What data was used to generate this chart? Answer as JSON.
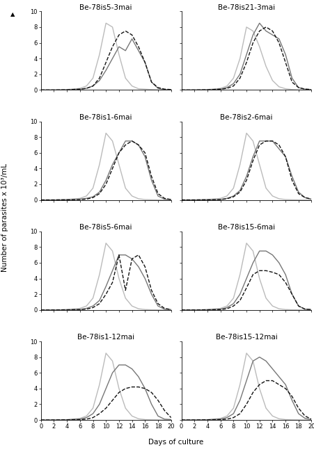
{
  "subplots": [
    {
      "title": "Be-78is5-3mai",
      "lines": [
        {
          "color": "#bbbbbb",
          "style": "solid",
          "lw": 1.0,
          "x": [
            0,
            2,
            4,
            6,
            7,
            8,
            9,
            10,
            11,
            12,
            13,
            14,
            15,
            16,
            17,
            18,
            19,
            20
          ],
          "y": [
            0,
            0,
            0.05,
            0.2,
            0.5,
            1.5,
            4.5,
            8.5,
            8.0,
            4.5,
            1.5,
            0.5,
            0.15,
            0.1,
            0.05,
            0.02,
            0.01,
            0.0
          ]
        },
        {
          "color": "#777777",
          "style": "solid",
          "lw": 1.0,
          "x": [
            0,
            2,
            4,
            6,
            7,
            8,
            9,
            10,
            11,
            12,
            13,
            14,
            15,
            16,
            17,
            18,
            19,
            20
          ],
          "y": [
            0,
            0,
            0.02,
            0.1,
            0.2,
            0.5,
            1.2,
            2.5,
            4.0,
            5.5,
            5.0,
            6.5,
            5.0,
            3.5,
            1.0,
            0.2,
            0.05,
            0.02
          ]
        },
        {
          "color": "#111111",
          "style": "dashed",
          "lw": 1.0,
          "x": [
            0,
            2,
            4,
            6,
            7,
            8,
            9,
            10,
            11,
            12,
            13,
            14,
            15,
            16,
            17,
            18,
            19,
            20
          ],
          "y": [
            0,
            0,
            0.02,
            0.1,
            0.2,
            0.5,
            1.5,
            3.5,
            5.5,
            7.0,
            7.5,
            7.0,
            5.5,
            3.5,
            1.0,
            0.3,
            0.1,
            0.05
          ]
        }
      ]
    },
    {
      "title": "Be-78is21-3mai",
      "lines": [
        {
          "color": "#bbbbbb",
          "style": "solid",
          "lw": 1.0,
          "x": [
            0,
            2,
            4,
            6,
            7,
            8,
            9,
            10,
            11,
            12,
            13,
            14,
            15,
            16,
            17,
            18,
            19,
            20
          ],
          "y": [
            0,
            0,
            0.05,
            0.2,
            0.5,
            1.5,
            4.0,
            8.0,
            7.5,
            5.5,
            3.0,
            1.2,
            0.4,
            0.15,
            0.05,
            0.02,
            0.01,
            0.0
          ]
        },
        {
          "color": "#777777",
          "style": "solid",
          "lw": 1.0,
          "x": [
            0,
            2,
            4,
            6,
            7,
            8,
            9,
            10,
            11,
            12,
            13,
            14,
            15,
            16,
            17,
            18,
            19,
            20
          ],
          "y": [
            0,
            0,
            0.02,
            0.1,
            0.3,
            0.8,
            2.0,
            4.5,
            7.0,
            8.5,
            7.5,
            7.0,
            6.5,
            4.5,
            1.5,
            0.3,
            0.1,
            0.05
          ]
        },
        {
          "color": "#111111",
          "style": "dashed",
          "lw": 1.0,
          "x": [
            0,
            2,
            4,
            6,
            7,
            8,
            9,
            10,
            11,
            12,
            13,
            14,
            15,
            16,
            17,
            18,
            19,
            20
          ],
          "y": [
            0,
            0,
            0.02,
            0.1,
            0.2,
            0.5,
            1.5,
            3.5,
            6.0,
            7.5,
            8.0,
            7.5,
            6.0,
            3.5,
            1.0,
            0.3,
            0.1,
            0.05
          ]
        }
      ]
    },
    {
      "title": "Be-78is1-6mai",
      "lines": [
        {
          "color": "#bbbbbb",
          "style": "solid",
          "lw": 1.0,
          "x": [
            0,
            2,
            4,
            6,
            7,
            8,
            9,
            10,
            11,
            12,
            13,
            14,
            15,
            16,
            17,
            18,
            19,
            20
          ],
          "y": [
            0,
            0,
            0.05,
            0.2,
            0.5,
            1.5,
            4.5,
            8.5,
            7.5,
            4.5,
            1.5,
            0.5,
            0.15,
            0.05,
            0.02,
            0.01,
            0.0,
            0.0
          ]
        },
        {
          "color": "#777777",
          "style": "solid",
          "lw": 1.0,
          "x": [
            0,
            2,
            4,
            6,
            7,
            8,
            9,
            10,
            11,
            12,
            13,
            14,
            15,
            16,
            17,
            18,
            19,
            20
          ],
          "y": [
            0,
            0,
            0.02,
            0.1,
            0.2,
            0.4,
            1.0,
            2.5,
            4.5,
            6.0,
            7.5,
            7.5,
            7.0,
            5.5,
            2.5,
            0.5,
            0.1,
            0.05
          ]
        },
        {
          "color": "#111111",
          "style": "dashed",
          "lw": 1.0,
          "x": [
            0,
            2,
            4,
            6,
            7,
            8,
            9,
            10,
            11,
            12,
            13,
            14,
            15,
            16,
            17,
            18,
            19,
            20
          ],
          "y": [
            0,
            0,
            0.02,
            0.05,
            0.1,
            0.3,
            0.8,
            2.0,
            4.0,
            6.0,
            7.0,
            7.5,
            7.0,
            6.0,
            3.0,
            0.8,
            0.2,
            0.05
          ]
        }
      ]
    },
    {
      "title": "Be-78is2-6mai",
      "lines": [
        {
          "color": "#bbbbbb",
          "style": "solid",
          "lw": 1.0,
          "x": [
            0,
            2,
            4,
            6,
            7,
            8,
            9,
            10,
            11,
            12,
            13,
            14,
            15,
            16,
            17,
            18,
            19,
            20
          ],
          "y": [
            0,
            0,
            0.05,
            0.2,
            0.5,
            1.5,
            4.5,
            8.5,
            7.5,
            4.5,
            1.5,
            0.5,
            0.15,
            0.05,
            0.02,
            0.01,
            0.0,
            0.0
          ]
        },
        {
          "color": "#777777",
          "style": "solid",
          "lw": 1.0,
          "x": [
            0,
            2,
            4,
            6,
            7,
            8,
            9,
            10,
            11,
            12,
            13,
            14,
            15,
            16,
            17,
            18,
            19,
            20
          ],
          "y": [
            0,
            0,
            0.02,
            0.05,
            0.2,
            0.5,
            1.2,
            3.0,
            5.5,
            7.5,
            7.5,
            7.5,
            6.5,
            5.5,
            3.0,
            1.0,
            0.3,
            0.1
          ]
        },
        {
          "color": "#111111",
          "style": "dashed",
          "lw": 1.0,
          "x": [
            0,
            2,
            4,
            6,
            7,
            8,
            9,
            10,
            11,
            12,
            13,
            14,
            15,
            16,
            17,
            18,
            19,
            20
          ],
          "y": [
            0,
            0,
            0.02,
            0.05,
            0.15,
            0.4,
            1.0,
            2.5,
            5.0,
            7.0,
            7.5,
            7.5,
            7.0,
            5.5,
            2.5,
            0.8,
            0.3,
            0.1
          ]
        }
      ]
    },
    {
      "title": "Be-78is5-6mai",
      "lines": [
        {
          "color": "#bbbbbb",
          "style": "solid",
          "lw": 1.0,
          "x": [
            0,
            2,
            4,
            6,
            7,
            8,
            9,
            10,
            11,
            12,
            13,
            14,
            15,
            16,
            17,
            18,
            19,
            20
          ],
          "y": [
            0,
            0,
            0.05,
            0.2,
            0.5,
            1.5,
            4.5,
            8.5,
            7.5,
            4.0,
            1.5,
            0.5,
            0.15,
            0.05,
            0.02,
            0.01,
            0.0,
            0.0
          ]
        },
        {
          "color": "#777777",
          "style": "solid",
          "lw": 1.0,
          "x": [
            0,
            2,
            4,
            6,
            7,
            8,
            9,
            10,
            11,
            12,
            13,
            14,
            15,
            16,
            17,
            18,
            19,
            20
          ],
          "y": [
            0,
            0,
            0.02,
            0.05,
            0.2,
            0.5,
            1.2,
            3.0,
            5.0,
            7.0,
            7.0,
            6.5,
            5.5,
            4.0,
            2.0,
            0.5,
            0.1,
            0.05
          ]
        },
        {
          "color": "#111111",
          "style": "dashed",
          "lw": 1.0,
          "x": [
            0,
            2,
            4,
            6,
            7,
            8,
            9,
            10,
            11,
            12,
            13,
            14,
            15,
            16,
            17,
            18,
            19,
            20
          ],
          "y": [
            0,
            0,
            0.02,
            0.05,
            0.1,
            0.3,
            0.8,
            2.0,
            3.5,
            7.0,
            2.5,
            6.5,
            7.0,
            5.5,
            2.5,
            0.8,
            0.2,
            0.05
          ]
        }
      ]
    },
    {
      "title": "Be-78is15-6mai",
      "lines": [
        {
          "color": "#bbbbbb",
          "style": "solid",
          "lw": 1.0,
          "x": [
            0,
            2,
            4,
            6,
            7,
            8,
            9,
            10,
            11,
            12,
            13,
            14,
            15,
            16,
            17,
            18,
            19,
            20
          ],
          "y": [
            0,
            0,
            0.05,
            0.2,
            0.5,
            1.5,
            4.5,
            8.5,
            7.5,
            4.0,
            1.5,
            0.5,
            0.15,
            0.05,
            0.02,
            0.01,
            0.0,
            0.0
          ]
        },
        {
          "color": "#777777",
          "style": "solid",
          "lw": 1.0,
          "x": [
            0,
            2,
            4,
            6,
            7,
            8,
            9,
            10,
            11,
            12,
            13,
            14,
            15,
            16,
            17,
            18,
            19,
            20
          ],
          "y": [
            0,
            0,
            0.02,
            0.1,
            0.3,
            0.8,
            2.0,
            4.0,
            6.0,
            7.5,
            7.5,
            7.0,
            6.0,
            4.5,
            2.0,
            0.5,
            0.1,
            0.05
          ]
        },
        {
          "color": "#111111",
          "style": "dashed",
          "lw": 1.0,
          "x": [
            0,
            2,
            4,
            6,
            7,
            8,
            9,
            10,
            11,
            12,
            13,
            14,
            15,
            16,
            17,
            18,
            19,
            20
          ],
          "y": [
            0,
            0,
            0.02,
            0.05,
            0.15,
            0.5,
            1.2,
            2.8,
            4.5,
            5.0,
            5.0,
            4.8,
            4.5,
            3.5,
            2.0,
            0.5,
            0.1,
            0.05
          ]
        }
      ]
    },
    {
      "title": "Be-78is1-12mai",
      "lines": [
        {
          "color": "#bbbbbb",
          "style": "solid",
          "lw": 1.0,
          "x": [
            0,
            2,
            4,
            6,
            7,
            8,
            9,
            10,
            11,
            12,
            13,
            14,
            15,
            16,
            17,
            18,
            19,
            20
          ],
          "y": [
            0,
            0,
            0.05,
            0.2,
            0.5,
            1.5,
            4.5,
            8.5,
            7.5,
            4.0,
            1.5,
            0.5,
            0.15,
            0.05,
            0.02,
            0.01,
            0.0,
            0.0
          ]
        },
        {
          "color": "#777777",
          "style": "solid",
          "lw": 1.0,
          "x": [
            0,
            2,
            4,
            6,
            7,
            8,
            9,
            10,
            11,
            12,
            13,
            14,
            15,
            16,
            17,
            18,
            19,
            20
          ],
          "y": [
            0,
            0,
            0.02,
            0.1,
            0.3,
            0.8,
            2.0,
            4.0,
            6.0,
            7.0,
            7.0,
            6.5,
            5.5,
            4.0,
            2.0,
            0.5,
            0.1,
            0.05
          ]
        },
        {
          "color": "#111111",
          "style": "dashed",
          "lw": 1.0,
          "x": [
            0,
            2,
            4,
            6,
            7,
            8,
            9,
            10,
            11,
            12,
            13,
            14,
            15,
            16,
            17,
            18,
            19,
            20
          ],
          "y": [
            0,
            0,
            0.02,
            0.05,
            0.1,
            0.3,
            0.8,
            1.5,
            2.5,
            3.5,
            4.0,
            4.2,
            4.2,
            4.0,
            3.5,
            2.5,
            1.2,
            0.3
          ]
        }
      ]
    },
    {
      "title": "Be-78is15-12mai",
      "lines": [
        {
          "color": "#bbbbbb",
          "style": "solid",
          "lw": 1.0,
          "x": [
            0,
            2,
            4,
            6,
            7,
            8,
            9,
            10,
            11,
            12,
            13,
            14,
            15,
            16,
            17,
            18,
            19,
            20
          ],
          "y": [
            0,
            0,
            0.05,
            0.2,
            0.5,
            1.5,
            4.5,
            8.5,
            7.5,
            4.0,
            1.5,
            0.5,
            0.15,
            0.05,
            0.02,
            0.01,
            0.0,
            0.0
          ]
        },
        {
          "color": "#777777",
          "style": "solid",
          "lw": 1.0,
          "x": [
            0,
            2,
            4,
            6,
            7,
            8,
            9,
            10,
            11,
            12,
            13,
            14,
            15,
            16,
            17,
            18,
            19,
            20
          ],
          "y": [
            0,
            0,
            0.02,
            0.1,
            0.3,
            0.8,
            2.5,
            5.0,
            7.5,
            8.0,
            7.5,
            6.5,
            5.5,
            4.5,
            2.5,
            0.8,
            0.2,
            0.05
          ]
        },
        {
          "color": "#111111",
          "style": "dashed",
          "lw": 1.0,
          "x": [
            0,
            2,
            4,
            6,
            7,
            8,
            9,
            10,
            11,
            12,
            13,
            14,
            15,
            16,
            17,
            18,
            19,
            20
          ],
          "y": [
            0,
            0,
            0.02,
            0.05,
            0.1,
            0.3,
            0.8,
            2.0,
            3.5,
            4.5,
            5.0,
            5.0,
            4.5,
            4.0,
            3.0,
            1.5,
            0.5,
            0.1
          ]
        }
      ]
    }
  ],
  "xlabel": "Days of culture",
  "ylabel": "Number of parasites x 10³/mL",
  "xlim": [
    0,
    20
  ],
  "ylim": [
    0,
    10
  ],
  "yticks": [
    0,
    2,
    4,
    6,
    8,
    10
  ],
  "xticks": [
    0,
    2,
    4,
    6,
    8,
    10,
    12,
    14,
    16,
    18,
    20
  ],
  "title_fontsize": 7.5,
  "tick_fontsize": 6.0,
  "label_fontsize": 7.5
}
